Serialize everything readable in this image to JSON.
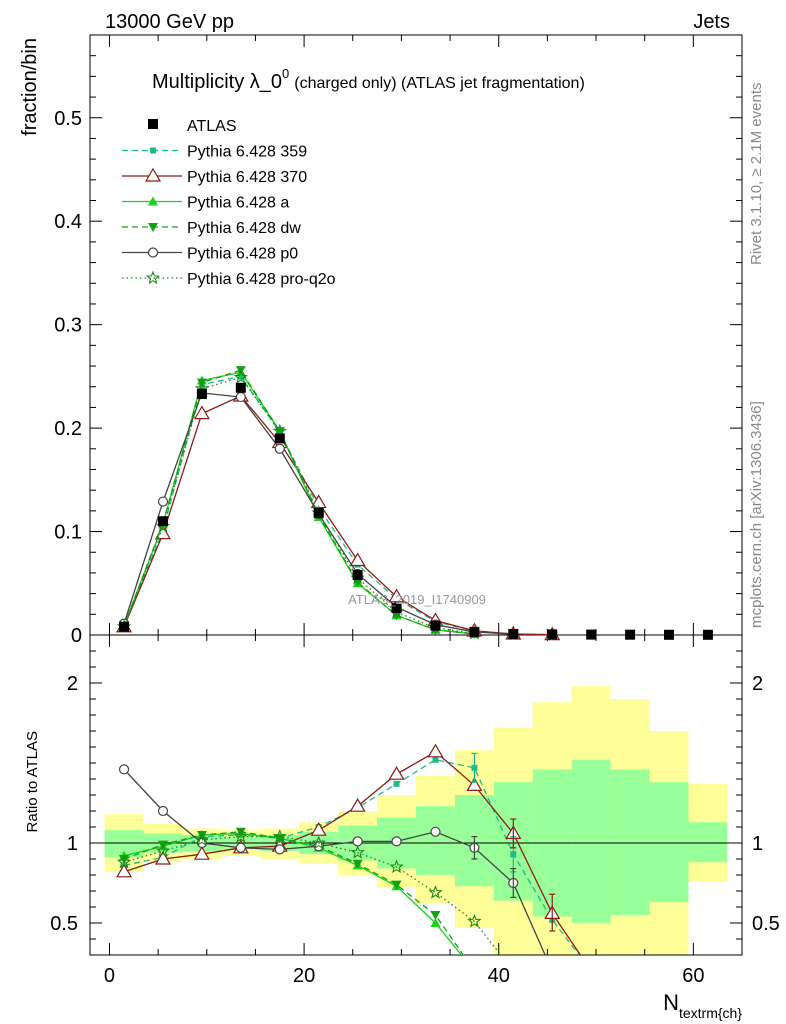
{
  "header": {
    "energy_label": "13000 GeV pp",
    "category_label": "Jets",
    "title_main": "Multiplicity λ_0",
    "title_sup": "0",
    "title_rest": "(charged only) (ATLAS jet fragmentation)",
    "side_label_top": "Rivet 3.1.10, ≥ 2.1M events",
    "side_label_bottom": "mcplots.cern.ch [arXiv:1306.3436]",
    "watermark": "ATLAS_2019_I1740909"
  },
  "chart_data": {
    "type": "line",
    "x": [
      1.5,
      5.5,
      9.5,
      13.5,
      17.5,
      21.5,
      25.5,
      29.5,
      33.5,
      37.5,
      41.5,
      45.5,
      49.5,
      53.5,
      57.5,
      61.5
    ],
    "xlim": [
      -2,
      65
    ],
    "xlabel": "N",
    "xlabel_sub": "textrm{ch}",
    "xticks": [
      0,
      20,
      40,
      60
    ],
    "main": {
      "ylabel": "fraction/bin",
      "ylim": [
        0,
        0.58
      ],
      "yticks": [
        0,
        0.1,
        0.2,
        0.3,
        0.4,
        0.5
      ],
      "ytick_labels": [
        "0",
        "0.1",
        "0.2",
        "0.3",
        "0.4",
        "0.5"
      ],
      "data_values": [
        0.008,
        0.11,
        0.233,
        0.239,
        0.19,
        0.118,
        0.058,
        0.026,
        0.009,
        0.003,
        0.001,
        0.0006,
        0.0004,
        0.0003,
        0.0002,
        0.0002
      ],
      "series": [
        {
          "name": "Pythia 6.428 359",
          "color": "#1fba8a",
          "dash": "6,4",
          "marker": "square-small",
          "values": [
            0.009,
            0.101,
            0.242,
            0.25,
            0.196,
            0.123,
            0.068,
            0.035,
            0.013,
            0.004,
            0.001,
            0.0003
          ]
        },
        {
          "name": "Pythia 6.428 370",
          "color": "#8b1a1a",
          "dash": "",
          "marker": "triangle-open",
          "values": [
            0.008,
            0.098,
            0.214,
            0.231,
            0.186,
            0.128,
            0.072,
            0.037,
            0.014,
            0.004,
            0.001,
            0.0003
          ]
        },
        {
          "name": "Pythia 6.428 a",
          "color": "#19d219",
          "dash": "",
          "marker": "triangle-filled",
          "values": [
            0.009,
            0.107,
            0.246,
            0.254,
            0.197,
            0.114,
            0.05,
            0.019,
            0.005,
            0.001
          ]
        },
        {
          "name": "Pythia 6.428 dw",
          "color": "#14a014",
          "dash": "6,4",
          "marker": "triangle-down",
          "values": [
            0.009,
            0.108,
            0.244,
            0.256,
            0.197,
            0.116,
            0.051,
            0.019,
            0.005,
            0.001
          ]
        },
        {
          "name": "Pythia 6.428 p0",
          "color": "#444444",
          "dash": "",
          "marker": "circle-open",
          "values": [
            0.011,
            0.129,
            0.234,
            0.23,
            0.18,
            0.117,
            0.059,
            0.027,
            0.01,
            0.003,
            0.0007
          ]
        },
        {
          "name": "Pythia 6.428 pro-q2o",
          "color": "#1a8a1a",
          "dash": "1.5,3",
          "marker": "star",
          "values": [
            0.008,
            0.105,
            0.238,
            0.249,
            0.197,
            0.118,
            0.055,
            0.022,
            0.007,
            0.0015
          ]
        }
      ]
    },
    "ratio": {
      "ylabel": "Ratio to ATLAS",
      "ylim": [
        0.3,
        2.3
      ],
      "yticks": [
        0.5,
        1,
        2
      ],
      "ytick_labels": [
        "0.5",
        "1",
        "2"
      ],
      "band_inner": [
        [
          0.91,
          1.08
        ],
        [
          0.94,
          1.06
        ],
        [
          0.95,
          1.05
        ],
        [
          0.96,
          1.04
        ],
        [
          0.95,
          1.05
        ],
        [
          0.93,
          1.07
        ],
        [
          0.89,
          1.11
        ],
        [
          0.84,
          1.16
        ],
        [
          0.8,
          1.23
        ],
        [
          0.73,
          1.3
        ],
        [
          0.64,
          1.38
        ],
        [
          0.54,
          1.46
        ],
        [
          0.5,
          1.52
        ],
        [
          0.55,
          1.46
        ],
        [
          0.63,
          1.38
        ],
        [
          0.88,
          1.13
        ]
      ],
      "band_outer": [
        [
          0.82,
          1.18
        ],
        [
          0.88,
          1.12
        ],
        [
          0.9,
          1.09
        ],
        [
          0.92,
          1.08
        ],
        [
          0.9,
          1.09
        ],
        [
          0.87,
          1.13
        ],
        [
          0.8,
          1.2
        ],
        [
          0.72,
          1.3
        ],
        [
          0.62,
          1.42
        ],
        [
          0.47,
          1.58
        ],
        [
          0.3,
          1.72
        ],
        [
          0.3,
          1.88
        ],
        [
          0.3,
          1.98
        ],
        [
          0.3,
          1.9
        ],
        [
          0.3,
          1.7
        ],
        [
          0.76,
          1.37
        ]
      ],
      "series": [
        {
          "name": "Pythia 6.428 359",
          "values": [
            0.86,
            0.91,
            1.04,
            1.05,
            1.03,
            1.1,
            1.22,
            1.37,
            1.52,
            1.47,
            0.93,
            0.52,
            0.2
          ]
        },
        {
          "name": "Pythia 6.428 370",
          "values": [
            0.82,
            0.9,
            0.93,
            0.97,
            0.98,
            1.08,
            1.23,
            1.43,
            1.57,
            1.36,
            1.06,
            0.56,
            0.2
          ]
        },
        {
          "name": "Pythia 6.428 a",
          "values": [
            0.92,
            0.98,
            1.05,
            1.06,
            1.03,
            0.97,
            0.86,
            0.73,
            0.5,
            0.2
          ]
        },
        {
          "name": "Pythia 6.428 dw",
          "values": [
            0.9,
            0.99,
            1.05,
            1.07,
            1.03,
            0.98,
            0.87,
            0.74,
            0.55,
            0.2
          ]
        },
        {
          "name": "Pythia 6.428 p0",
          "values": [
            1.46,
            1.2,
            1.0,
            0.97,
            0.96,
            0.98,
            1.01,
            1.01,
            1.07,
            0.97,
            0.75,
            0.2
          ]
        },
        {
          "name": "Pythia 6.428 pro-q2o",
          "values": [
            0.88,
            0.95,
            1.02,
            1.04,
            1.04,
            1.0,
            0.94,
            0.85,
            0.69,
            0.51,
            0.2
          ]
        }
      ],
      "error_bars": [
        {
          "series": 0,
          "x": 37.5,
          "lo": 1.38,
          "hi": 1.56
        },
        {
          "series": 0,
          "x": 41.5,
          "lo": 0.82,
          "hi": 1.04
        },
        {
          "series": 1,
          "x": 41.5,
          "lo": 0.97,
          "hi": 1.15
        },
        {
          "series": 4,
          "x": 37.5,
          "lo": 0.9,
          "hi": 1.04
        },
        {
          "series": 4,
          "x": 41.5,
          "lo": 0.66,
          "hi": 0.84
        },
        {
          "series": 1,
          "x": 45.5,
          "lo": 0.45,
          "hi": 0.68
        }
      ]
    }
  }
}
